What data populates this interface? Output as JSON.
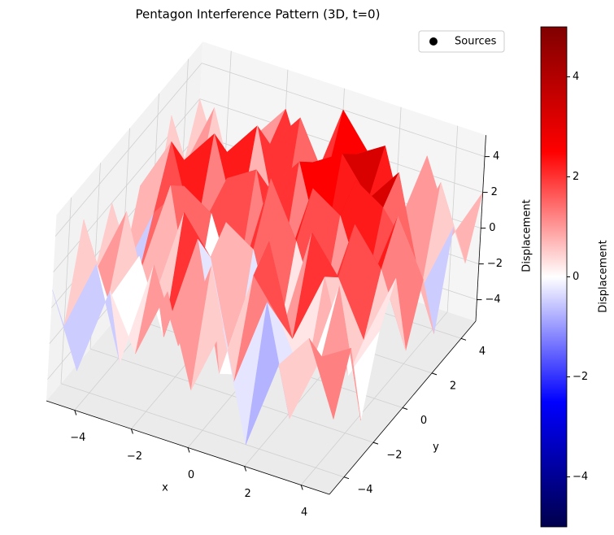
{
  "chart_data": {
    "type": "surface",
    "title": "Pentagon Interference Pattern (3D, t=0)",
    "x_label": "x",
    "y_label": "y",
    "z_label": "Displacement",
    "x": [
      -5,
      -4,
      -3,
      -2,
      -1,
      0,
      1,
      2,
      3,
      4,
      5
    ],
    "y": [
      -5,
      -4,
      -3,
      -2,
      -1,
      0,
      1,
      2,
      3,
      4,
      5
    ],
    "z": [
      [
        1,
        -3,
        2,
        -1,
        3,
        -2,
        2,
        -4,
        1,
        3,
        -1
      ],
      [
        -2,
        2,
        -3,
        3,
        -1,
        4,
        -2,
        3,
        -3,
        1,
        2
      ],
      [
        3,
        -1,
        2,
        -2,
        4,
        -3,
        3,
        1,
        -2,
        4,
        -3
      ],
      [
        -1,
        3,
        -2,
        4,
        2,
        -4,
        4,
        -1,
        3,
        -2,
        1
      ],
      [
        2,
        -2,
        4,
        -3,
        3,
        2,
        -3,
        4,
        2,
        -1,
        3
      ],
      [
        -3,
        1,
        3,
        2,
        -2,
        5,
        2,
        -2,
        4,
        2,
        -2
      ],
      [
        1,
        4,
        -1,
        3,
        4,
        -2,
        4,
        3,
        -1,
        4,
        1
      ],
      [
        -2,
        2,
        4,
        -1,
        2,
        4,
        -1,
        4,
        3,
        1,
        -3
      ],
      [
        3,
        -1,
        2,
        4,
        -2,
        3,
        4,
        2,
        4,
        -2,
        2
      ],
      [
        -1,
        3,
        -2,
        2,
        4,
        1,
        3,
        4,
        -1,
        3,
        -1
      ],
      [
        2,
        -2,
        1,
        3,
        -1,
        4,
        2,
        -2,
        3,
        -1,
        2
      ]
    ],
    "xlim": [
      -5,
      5
    ],
    "ylim": [
      -5,
      5
    ],
    "zlim": [
      -5.2,
      5.2
    ],
    "xticks": [
      {
        "value": -4,
        "label": "−4"
      },
      {
        "value": -2,
        "label": "−2"
      },
      0,
      2,
      4
    ],
    "yticks": [
      {
        "value": -4,
        "label": "−4"
      },
      {
        "value": -2,
        "label": "−2"
      },
      0,
      2,
      4
    ],
    "zticks": [
      {
        "value": -4,
        "label": "−4"
      },
      {
        "value": -2,
        "label": "−2"
      },
      0,
      2,
      4
    ],
    "colormap": "seismic",
    "clim": [
      -5,
      5
    ],
    "colorbar": {
      "label": "Displacement",
      "ticks": [
        {
          "value": -4,
          "label": "−4"
        },
        {
          "value": -2,
          "label": "−2"
        },
        0,
        2,
        4
      ]
    },
    "legend": {
      "name": "Sources",
      "color": "#000000",
      "position": "upper right"
    },
    "grid": true
  }
}
